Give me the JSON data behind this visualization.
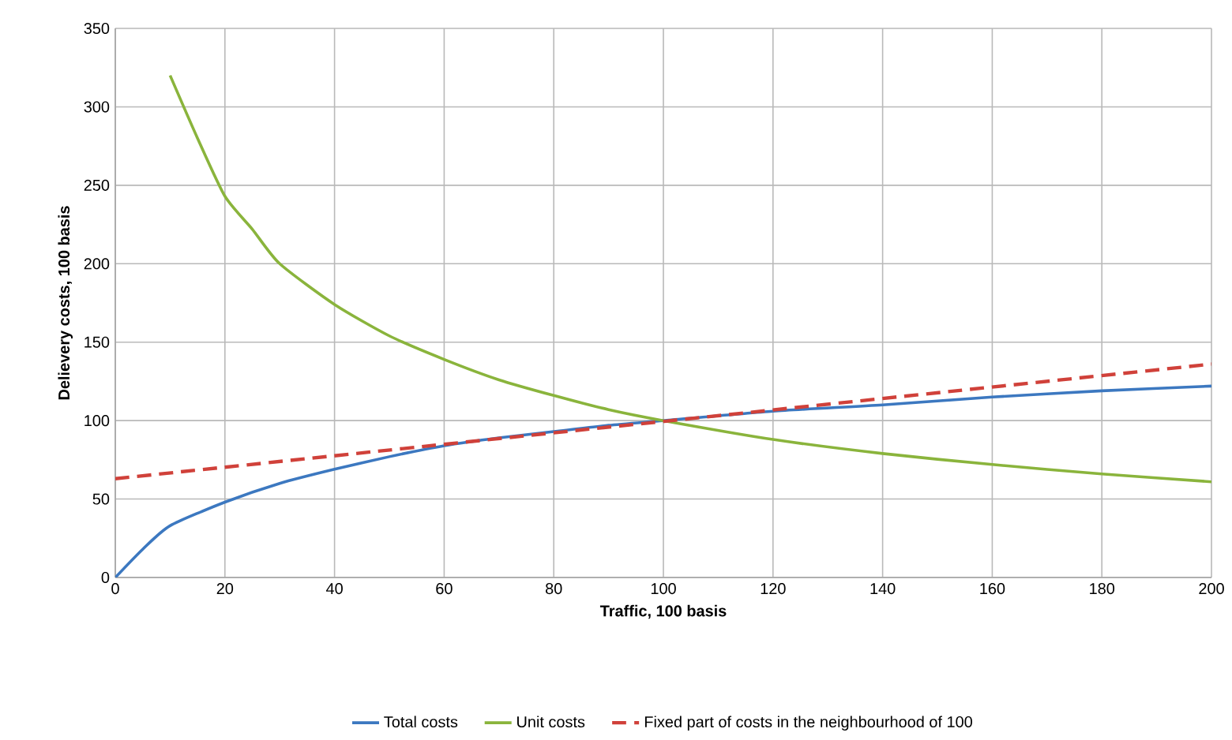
{
  "chart_data": {
    "type": "line",
    "xlabel": "Traffic, 100 basis",
    "ylabel": "Delievery costs, 100 basis",
    "xlim": [
      0,
      200
    ],
    "ylim": [
      0,
      350
    ],
    "xticks": [
      0,
      20,
      40,
      60,
      80,
      100,
      120,
      140,
      160,
      180,
      200
    ],
    "yticks": [
      0,
      50,
      100,
      150,
      200,
      250,
      300,
      350
    ],
    "grid": true,
    "legend": "bottom",
    "series": [
      {
        "name": "Total costs",
        "color": "#3c78c0",
        "line_style": "solid",
        "x": [
          0,
          5,
          10,
          20,
          30,
          40,
          50,
          60,
          70,
          80,
          90,
          100,
          120,
          140,
          160,
          180,
          200
        ],
        "values": [
          0,
          18,
          33,
          48,
          60,
          69,
          77,
          84,
          89,
          93,
          97,
          100,
          106,
          110,
          115,
          119,
          122
        ]
      },
      {
        "name": "Unit costs",
        "color": "#8ab43c",
        "line_style": "solid",
        "x": [
          10,
          15,
          20,
          25,
          30,
          40,
          50,
          60,
          70,
          80,
          90,
          100,
          120,
          140,
          160,
          180,
          200
        ],
        "values": [
          320,
          280,
          243,
          222,
          200,
          174,
          154,
          139,
          126,
          116,
          107,
          100,
          88,
          79,
          72,
          66,
          61
        ]
      },
      {
        "name": "Fixed part of costs in the neighbourhood of 100",
        "color": "#d0413a",
        "line_style": "dashed",
        "x": [
          0,
          200
        ],
        "values": [
          63,
          136
        ]
      }
    ]
  }
}
